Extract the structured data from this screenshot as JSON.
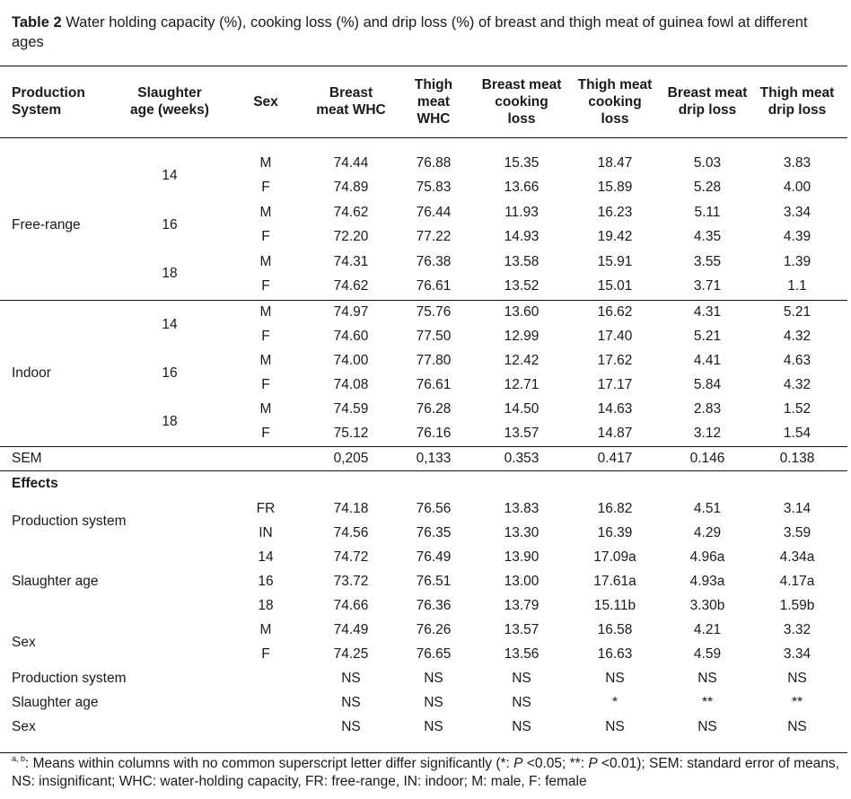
{
  "caption": {
    "label": "Table 2",
    "text": " Water holding capacity (%), cooking loss (%) and drip loss (%) of breast and thigh meat of guinea fowl at different ages"
  },
  "headers": [
    "Production System",
    "Slaughter age (weeks)",
    "Sex",
    "Breast meat WHC",
    "Thigh meat WHC",
    "Breast meat cooking loss",
    "Thigh meat cooking loss",
    "Breast meat drip loss",
    "Thigh meat drip loss"
  ],
  "groups": [
    {
      "system": "Free-range",
      "ages": [
        {
          "age": "14",
          "rows": [
            {
              "sex": "M",
              "values": [
                "74.44",
                "76.88",
                "15.35",
                "18.47",
                "5.03",
                "3.83"
              ]
            },
            {
              "sex": "F",
              "values": [
                "74.89",
                "75.83",
                "13.66",
                "15.89",
                "5.28",
                "4.00"
              ]
            }
          ]
        },
        {
          "age": "16",
          "rows": [
            {
              "sex": "M",
              "values": [
                "74.62",
                "76.44",
                "11.93",
                "16.23",
                "5.11",
                "3.34"
              ]
            },
            {
              "sex": "F",
              "values": [
                "72.20",
                "77.22",
                "14.93",
                "19.42",
                "4.35",
                "4.39"
              ]
            }
          ]
        },
        {
          "age": "18",
          "rows": [
            {
              "sex": "M",
              "values": [
                "74.31",
                "76.38",
                "13.58",
                "15.91",
                "3.55",
                "1.39"
              ]
            },
            {
              "sex": "F",
              "values": [
                "74.62",
                "76.61",
                "13.52",
                "15.01",
                "3.71",
                "1.1"
              ]
            }
          ]
        }
      ]
    },
    {
      "system": "Indoor",
      "ages": [
        {
          "age": "14",
          "rows": [
            {
              "sex": "M",
              "values": [
                "74.97",
                "75.76",
                "13.60",
                "16.62",
                "4.31",
                "5.21"
              ]
            },
            {
              "sex": "F",
              "values": [
                "74.60",
                "77.50",
                "12.99",
                "17.40",
                "5.21",
                "4.32"
              ]
            }
          ]
        },
        {
          "age": "16",
          "rows": [
            {
              "sex": "M",
              "values": [
                "74.00",
                "77.80",
                "12.42",
                "17.62",
                "4.41",
                "4.63"
              ]
            },
            {
              "sex": "F",
              "values": [
                "74.08",
                "76.61",
                "12.71",
                "17.17",
                "5.84",
                "4.32"
              ]
            }
          ]
        },
        {
          "age": "18",
          "rows": [
            {
              "sex": "M",
              "values": [
                "74.59",
                "76.28",
                "14.50",
                "14.63",
                "2.83",
                "1.52"
              ]
            },
            {
              "sex": "F",
              "values": [
                "75.12",
                "76.16",
                "13.57",
                "14.87",
                "3.12",
                "1.54"
              ]
            }
          ]
        }
      ]
    }
  ],
  "sem": {
    "label": "SEM",
    "values": [
      "0,205",
      "0,133",
      "0.353",
      "0.417",
      "0.146",
      "0.138"
    ]
  },
  "effects_label": "Effects",
  "effect_groups": [
    {
      "label": "Production system",
      "rows": [
        {
          "level": "FR",
          "values": [
            "74.18",
            "76.56",
            "13.83",
            "16.82",
            "4.51",
            "3.14"
          ]
        },
        {
          "level": "IN",
          "values": [
            "74.56",
            "76.35",
            "13.30",
            "16.39",
            "4.29",
            "3.59"
          ]
        }
      ]
    },
    {
      "label": "Slaughter age",
      "rows": [
        {
          "level": "14",
          "values": [
            "74.72",
            "76.49",
            "13.90",
            "17.09a",
            "4.96a",
            "4.34a"
          ]
        },
        {
          "level": "16",
          "values": [
            "73.72",
            "76.51",
            "13.00",
            "17.61a",
            "4.93a",
            "4.17a"
          ]
        },
        {
          "level": "18",
          "values": [
            "74.66",
            "76.36",
            "13.79",
            "15.11b",
            "3.30b",
            "1.59b"
          ]
        }
      ]
    },
    {
      "label": "Sex",
      "rows": [
        {
          "level": "M",
          "values": [
            "74.49",
            "76.26",
            "13.57",
            "16.58",
            "4.21",
            "3.32"
          ]
        },
        {
          "level": "F",
          "values": [
            "74.25",
            "76.65",
            "13.56",
            "16.63",
            "4.59",
            "3.34"
          ]
        }
      ]
    }
  ],
  "significance": [
    {
      "label": "Production system",
      "values": [
        "NS",
        "NS",
        "NS",
        "NS",
        "NS",
        "NS"
      ]
    },
    {
      "label": "Slaughter age",
      "values": [
        "NS",
        "NS",
        "NS",
        "*",
        "**",
        "**"
      ]
    },
    {
      "label": "Sex",
      "values": [
        "NS",
        "NS",
        "NS",
        "NS",
        "NS",
        "NS"
      ]
    }
  ],
  "footnote": {
    "sup": "a, b",
    "line1": ": Means within columns with no common superscript letter differ significantly (*: ",
    "p1": "P",
    "mid": " <0.05; **: ",
    "p2": "P",
    "line1_end": " <0.01); SEM: standard error of means, NS: insignificant; WHC: water-holding capacity, FR: free-range, IN: indoor; M: male, F: female"
  }
}
